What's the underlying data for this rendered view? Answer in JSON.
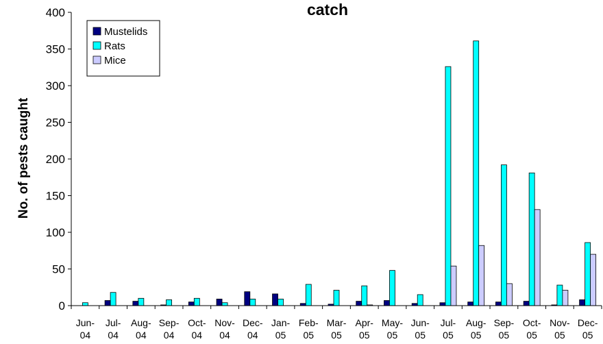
{
  "chart_data": {
    "type": "bar",
    "title": "catch",
    "xlabel": "",
    "ylabel": "No. of pests caught",
    "ylim": [
      0,
      400
    ],
    "yticks": [
      "0",
      "50",
      "100",
      "150",
      "200",
      "250",
      "300",
      "350",
      "400"
    ],
    "categories": [
      "Jun-04",
      "Jul-04",
      "Aug-04",
      "Sep-04",
      "Oct-04",
      "Nov-04",
      "Dec-04",
      "Jan-05",
      "Feb-05",
      "Mar-05",
      "Apr-05",
      "May-05",
      "Jun-05",
      "Jul-05",
      "Aug-05",
      "Sep-05",
      "Oct-05",
      "Nov-05",
      "Dec-05"
    ],
    "category_lines": [
      [
        "Jun-",
        "04"
      ],
      [
        "Jul-",
        "04"
      ],
      [
        "Aug-",
        "04"
      ],
      [
        "Sep-",
        "04"
      ],
      [
        "Oct-",
        "04"
      ],
      [
        "Nov-",
        "04"
      ],
      [
        "Dec-",
        "04"
      ],
      [
        "Jan-",
        "05"
      ],
      [
        "Feb-",
        "05"
      ],
      [
        "Mar-",
        "05"
      ],
      [
        "Apr-",
        "05"
      ],
      [
        "May-",
        "05"
      ],
      [
        "Jun-",
        "05"
      ],
      [
        "Jul-",
        "05"
      ],
      [
        "Aug-",
        "05"
      ],
      [
        "Sep-",
        "05"
      ],
      [
        "Oct-",
        "05"
      ],
      [
        "Nov-",
        "05"
      ],
      [
        "Dec-",
        "05"
      ]
    ],
    "series": [
      {
        "name": "Mustelids",
        "color": "#000080",
        "values": [
          0,
          7,
          6,
          1,
          5,
          9,
          19,
          16,
          3,
          2,
          6,
          7,
          3,
          4,
          5,
          5,
          6,
          1,
          8
        ]
      },
      {
        "name": "Rats",
        "color": "#00FFFF",
        "values": [
          4,
          18,
          10,
          8,
          10,
          4,
          9,
          9,
          29,
          21,
          27,
          48,
          15,
          326,
          361,
          192,
          181,
          28,
          86
        ]
      },
      {
        "name": "Mice",
        "color": "#CCCCFF",
        "values": [
          0,
          0,
          0,
          0,
          0,
          0,
          0,
          0,
          0,
          0,
          1,
          0,
          0,
          54,
          82,
          30,
          131,
          21,
          70
        ]
      }
    ],
    "legend_position": "top-left",
    "grid": false
  }
}
